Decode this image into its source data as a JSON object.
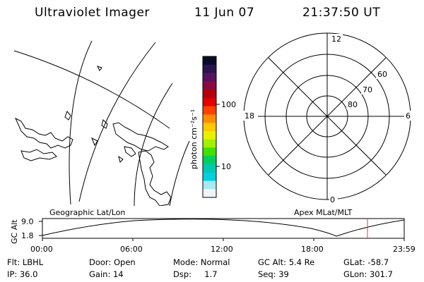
{
  "header": {
    "title": "Ultraviolet Imager",
    "date": "11 Jun 07",
    "time": "21:37:50 UT"
  },
  "colorbar": {
    "unit_label": "photon cm⁻²s⁻¹",
    "ticks": [
      "100",
      "10"
    ],
    "colors": [
      "#0a0a2a",
      "#2a1450",
      "#5a1060",
      "#8a0a40",
      "#b00010",
      "#e00000",
      "#ff4000",
      "#ff8c00",
      "#ffc800",
      "#e8f000",
      "#a0f000",
      "#40e000",
      "#00d060",
      "#00c8b0",
      "#00d0e0",
      "#a8e8f0",
      "#f0f4f8"
    ]
  },
  "geo_panel": {
    "label": "Geographic Lat/Lon"
  },
  "polar_panel": {
    "label": "Apex MLat/MLT",
    "mlt_labels": [
      "12",
      "18",
      "6",
      "0"
    ],
    "lat_labels": [
      "60",
      "70",
      "80"
    ]
  },
  "altitude_plot": {
    "ylabel": "GC Alt",
    "y_ticks": [
      "9.0",
      "1.8"
    ],
    "x_ticks": [
      "00:00",
      "06:00",
      "12:00",
      "18:00",
      "23:59"
    ],
    "marker_color": "#d04040"
  },
  "info": {
    "filter": "Flt: LBHL",
    "ip": "IP: 36.0",
    "door": "Door: Open",
    "gain": "Gain: 14",
    "mode": "Mode: Normal",
    "dsp": "Dsp:     1.7",
    "gc_alt": "GC Alt: 5.4 Re",
    "seq": "Seq: 39",
    "glat": "GLat: -58.7",
    "glon": "GLon: 301.7"
  }
}
